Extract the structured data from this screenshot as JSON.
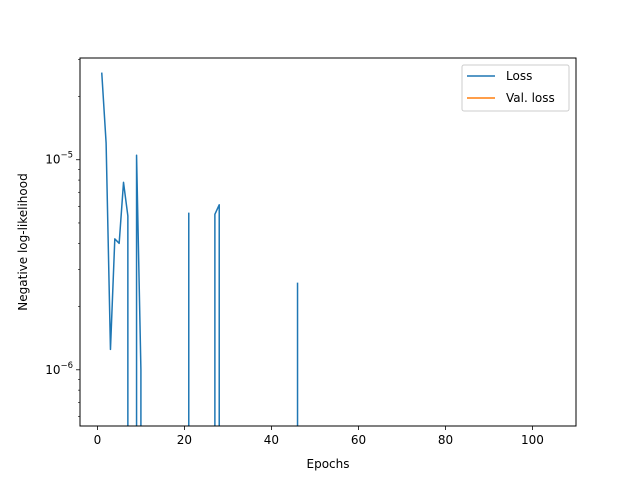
{
  "chart_data": {
    "type": "line",
    "xlabel": "Epochs",
    "ylabel": "Negative log-likelihood",
    "y_scale": "log",
    "xlim": [
      -4,
      110
    ],
    "ylim": [
      5.4e-07,
      3.05e-05
    ],
    "grid": false,
    "legend_position": "top-right",
    "x_ticks": [
      {
        "value": 0,
        "label": "0"
      },
      {
        "value": 20,
        "label": "20"
      },
      {
        "value": 40,
        "label": "40"
      },
      {
        "value": 60,
        "label": "60"
      },
      {
        "value": 80,
        "label": "80"
      },
      {
        "value": 100,
        "label": "100"
      }
    ],
    "y_ticks": [
      {
        "value": 1e-06,
        "base": "10",
        "exponent": "−6"
      },
      {
        "value": 1e-05,
        "base": "10",
        "exponent": "−5"
      }
    ],
    "series": [
      {
        "name": "Loss",
        "color": "#1f77b4",
        "segments": [
          {
            "x": [
              1,
              2,
              3,
              4,
              5,
              6,
              7,
              7
            ],
            "y": [
              2.6e-05,
              1.2e-05,
              1.25e-06,
              4.2e-06,
              4e-06,
              7.8e-06,
              5.4e-06,
              5.4e-07
            ]
          },
          {
            "x": [
              9,
              9,
              10,
              10
            ],
            "y": [
              5.4e-07,
              1.05e-05,
              1e-06,
              5.4e-07
            ]
          },
          {
            "x": [
              21,
              21
            ],
            "y": [
              5.4e-07,
              5.6e-06
            ]
          },
          {
            "x": [
              27,
              27,
              28,
              28
            ],
            "y": [
              5.4e-07,
              5.5e-06,
              6.1e-06,
              5.4e-07
            ]
          },
          {
            "x": [
              46,
              46
            ],
            "y": [
              5.4e-07,
              2.6e-06
            ]
          }
        ]
      },
      {
        "name": "Val. loss",
        "color": "#ff7f0e",
        "segments": []
      }
    ]
  }
}
